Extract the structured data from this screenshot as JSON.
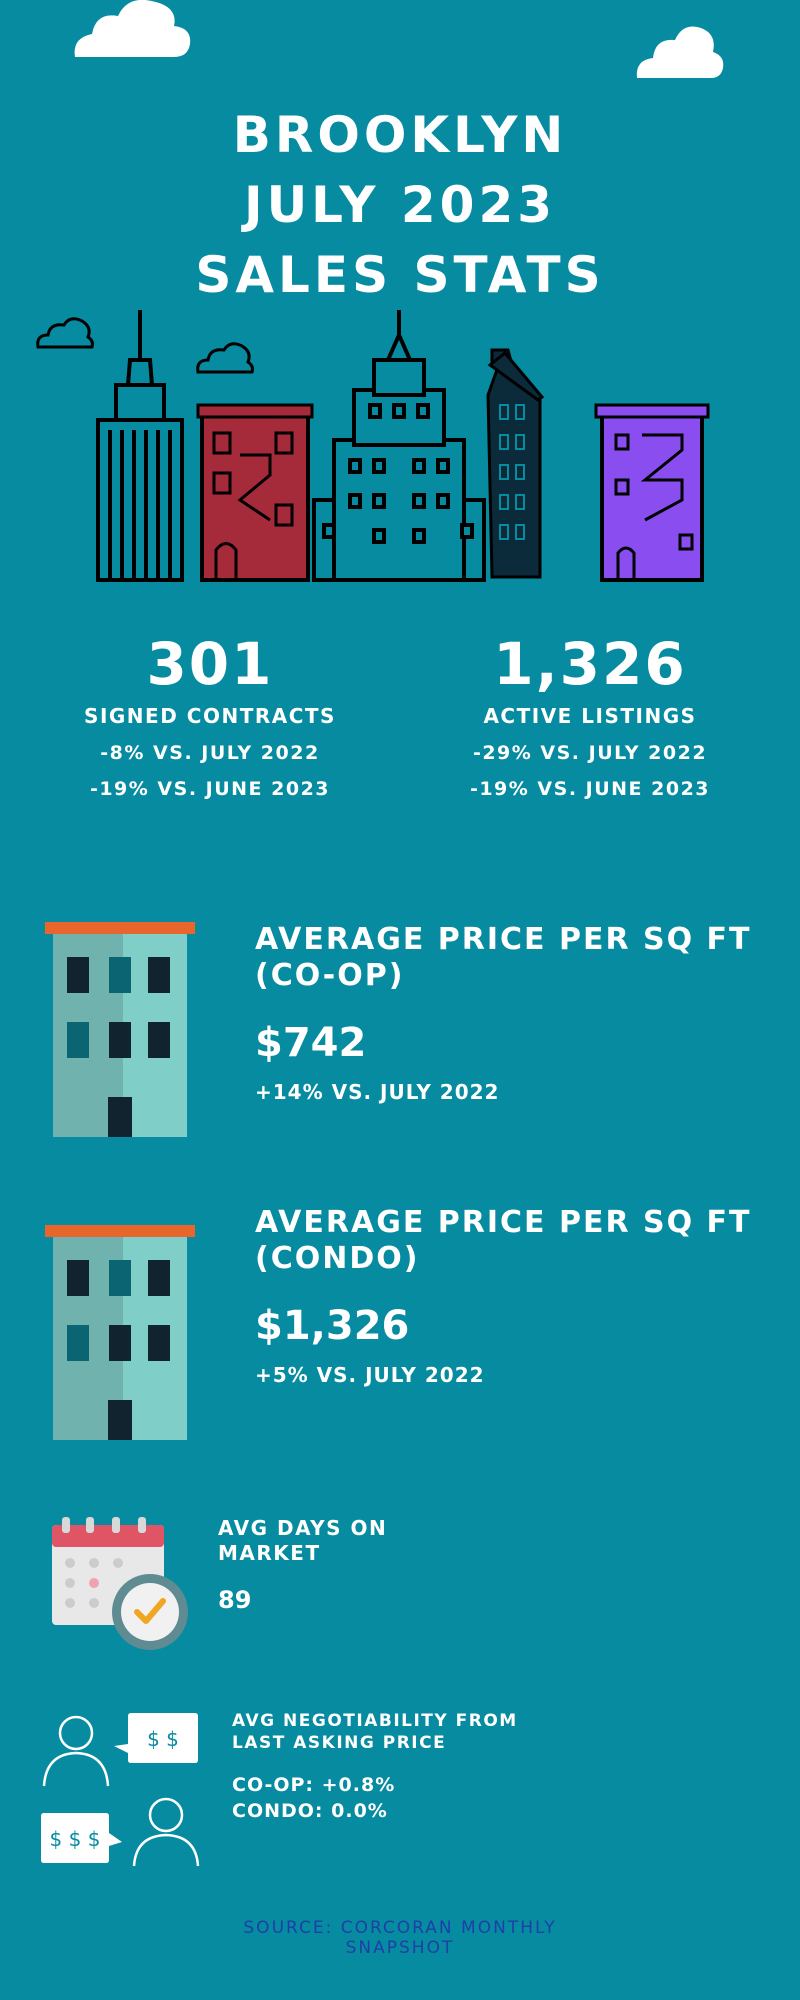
{
  "title": {
    "line1": "BROOKLYN",
    "line2": "JULY 2023",
    "line3": "SALES STATS"
  },
  "stats": {
    "contracts": {
      "value": "301",
      "label": "SIGNED CONTRACTS",
      "change1": "-8% VS. JULY 2022",
      "change2": "-19% VS. JUNE 2023"
    },
    "listings": {
      "value": "1,326",
      "label": "ACTIVE LISTINGS",
      "change1": "-29% VS. JULY 2022",
      "change2": "-19% VS. JUNE 2023"
    }
  },
  "coop": {
    "heading": "AVERAGE PRICE PER SQ FT (CO-OP)",
    "value": "$742",
    "change": "+14% VS. JULY 2022"
  },
  "condo": {
    "heading": "AVERAGE PRICE PER SQ FT (CONDO)",
    "value": "$1,326",
    "change": "+5% VS. JULY 2022"
  },
  "days": {
    "heading": "AVG DAYS ON MARKET",
    "value": "89"
  },
  "negotiability": {
    "heading": "AVG NEGOTIABILITY FROM LAST ASKING PRICE",
    "coop": "CO-OP: +0.8%",
    "condo": "CONDO: 0.0%"
  },
  "source": "SOURCE: CORCORAN MONTHLY SNAPSHOT",
  "icons": {
    "bubble_two": "$ $",
    "bubble_three": "$ $ $"
  },
  "colors": {
    "background": "#068ba0",
    "source_text": "#1f3fa8",
    "red_building": "#a52a3a",
    "purple_building": "#8a4df0",
    "orange_roof": "#e8652c"
  }
}
